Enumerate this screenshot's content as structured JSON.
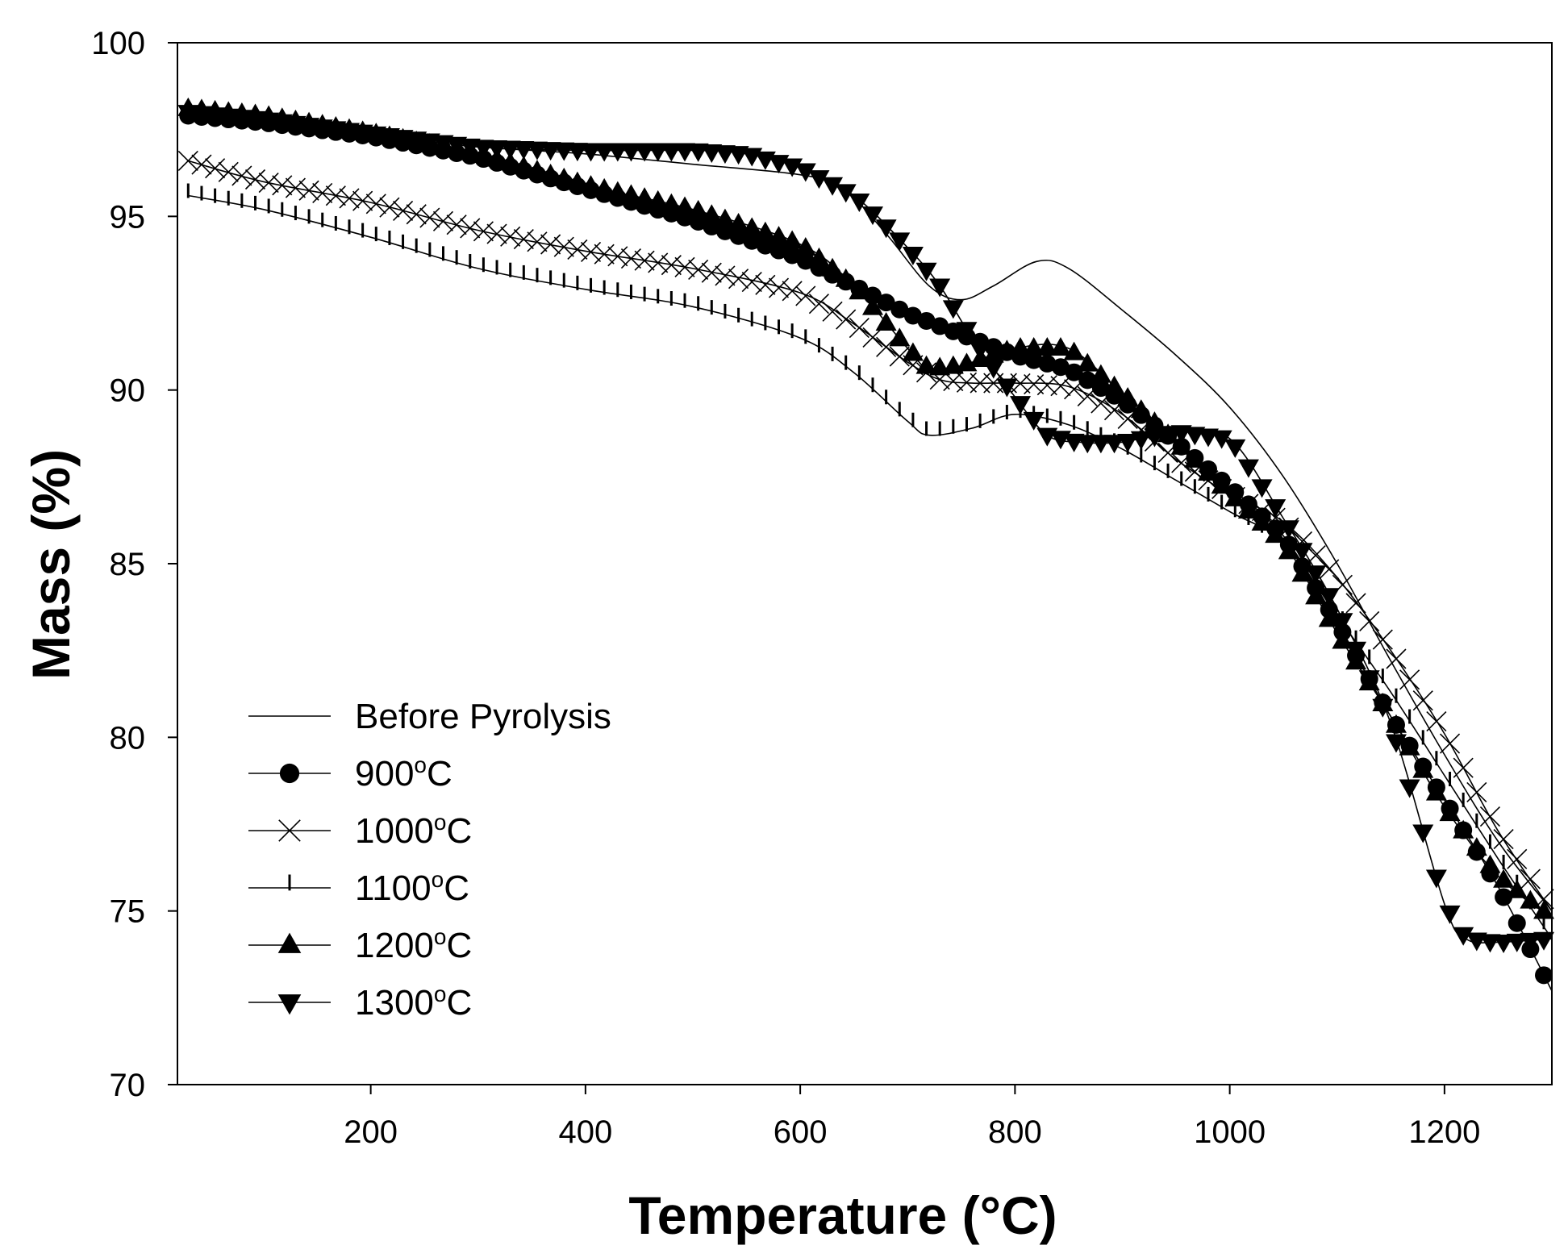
{
  "chart_data": {
    "type": "line",
    "title": "",
    "xlabel": "Temperature (°C)",
    "ylabel": "Mass (%)",
    "xlim": [
      20,
      1300
    ],
    "ylim": [
      70,
      100
    ],
    "xticks": [
      200,
      400,
      600,
      800,
      1000,
      1200
    ],
    "yticks": [
      70,
      75,
      80,
      85,
      90,
      95,
      100
    ],
    "grid": false,
    "legend_position": "lower-left",
    "series": [
      {
        "name": "Before Pyrolysis",
        "marker": "none",
        "x": [
          30,
          100,
          200,
          250,
          300,
          400,
          500,
          600,
          640,
          680,
          720,
          750,
          780,
          820,
          850,
          900,
          950,
          1000,
          1050,
          1100,
          1150,
          1200,
          1250,
          1300
        ],
        "y": [
          98.0,
          97.8,
          97.5,
          97.2,
          97.0,
          96.8,
          96.5,
          96.2,
          95.8,
          94.5,
          93.0,
          92.6,
          93.0,
          93.7,
          93.5,
          92.3,
          91.0,
          89.5,
          87.5,
          85.0,
          82.2,
          79.5,
          77.0,
          75.0
        ]
      },
      {
        "name": "900°C",
        "marker": "circle",
        "x": [
          30,
          100,
          200,
          300,
          400,
          500,
          600,
          650,
          700,
          750,
          800,
          850,
          900,
          950,
          1000,
          1050,
          1100,
          1150,
          1200,
          1250,
          1300
        ],
        "y": [
          97.9,
          97.7,
          97.3,
          96.7,
          95.8,
          94.9,
          93.8,
          93.0,
          92.2,
          91.6,
          91.0,
          90.6,
          89.7,
          88.5,
          87.2,
          85.8,
          83.3,
          80.6,
          78.2,
          75.7,
          72.7
        ]
      },
      {
        "name": "1000°C",
        "marker": "x",
        "x": [
          30,
          100,
          200,
          300,
          400,
          500,
          600,
          650,
          700,
          730,
          760,
          800,
          850,
          900,
          950,
          1000,
          1050,
          1100,
          1150,
          1200,
          1250,
          1300
        ],
        "y": [
          96.6,
          96.0,
          95.4,
          94.6,
          94.0,
          93.5,
          92.8,
          91.9,
          90.8,
          90.3,
          90.2,
          90.2,
          90.1,
          89.3,
          88.0,
          87.0,
          86.2,
          84.6,
          82.5,
          80.1,
          77.3,
          75.0
        ]
      },
      {
        "name": "1100°C",
        "marker": "vbar",
        "x": [
          30,
          100,
          200,
          300,
          400,
          500,
          600,
          650,
          700,
          720,
          760,
          800,
          850,
          900,
          950,
          1000,
          1050,
          1100,
          1150,
          1200,
          1250,
          1300
        ],
        "y": [
          95.6,
          95.2,
          94.4,
          93.5,
          92.9,
          92.4,
          91.5,
          90.5,
          89.1,
          88.7,
          88.9,
          89.3,
          89.0,
          88.3,
          87.4,
          86.5,
          85.6,
          83.5,
          81.3,
          78.9,
          76.5,
          74.2
        ]
      },
      {
        "name": "1200°C",
        "marker": "triangle-up",
        "x": [
          30,
          100,
          200,
          300,
          400,
          500,
          600,
          650,
          700,
          720,
          750,
          800,
          850,
          900,
          950,
          1000,
          1050,
          1100,
          1150,
          1200,
          1250,
          1300
        ],
        "y": [
          98.1,
          97.9,
          97.4,
          96.8,
          95.9,
          95.2,
          94.2,
          93.0,
          91.2,
          90.6,
          90.7,
          91.2,
          91.2,
          89.9,
          88.5,
          87.0,
          85.6,
          83.0,
          80.6,
          78.0,
          76.0,
          74.8
        ]
      },
      {
        "name": "1300°C",
        "marker": "triangle-down",
        "x": [
          30,
          100,
          200,
          300,
          400,
          500,
          550,
          600,
          650,
          700,
          730,
          760,
          800,
          830,
          860,
          900,
          950,
          1000,
          1050,
          1100,
          1150,
          1200,
          1220,
          1250,
          1300
        ],
        "y": [
          98.0,
          97.8,
          97.4,
          97.0,
          96.9,
          96.9,
          96.8,
          96.4,
          95.6,
          94.1,
          93.0,
          91.5,
          89.8,
          88.7,
          88.5,
          88.5,
          88.8,
          88.6,
          86.3,
          83.7,
          80.4,
          75.2,
          74.2,
          74.1,
          74.2
        ]
      }
    ],
    "legend_labels": [
      {
        "base": "Before Pyrolysis",
        "sup": "",
        "tail": ""
      },
      {
        "base": "900",
        "sup": "o",
        "tail": "C"
      },
      {
        "base": "1000",
        "sup": "o",
        "tail": "C"
      },
      {
        "base": "1100",
        "sup": "o",
        "tail": "C"
      },
      {
        "base": "1200",
        "sup": "o",
        "tail": "C"
      },
      {
        "base": "1300",
        "sup": "o",
        "tail": "C"
      }
    ],
    "line_color": "#000000"
  }
}
